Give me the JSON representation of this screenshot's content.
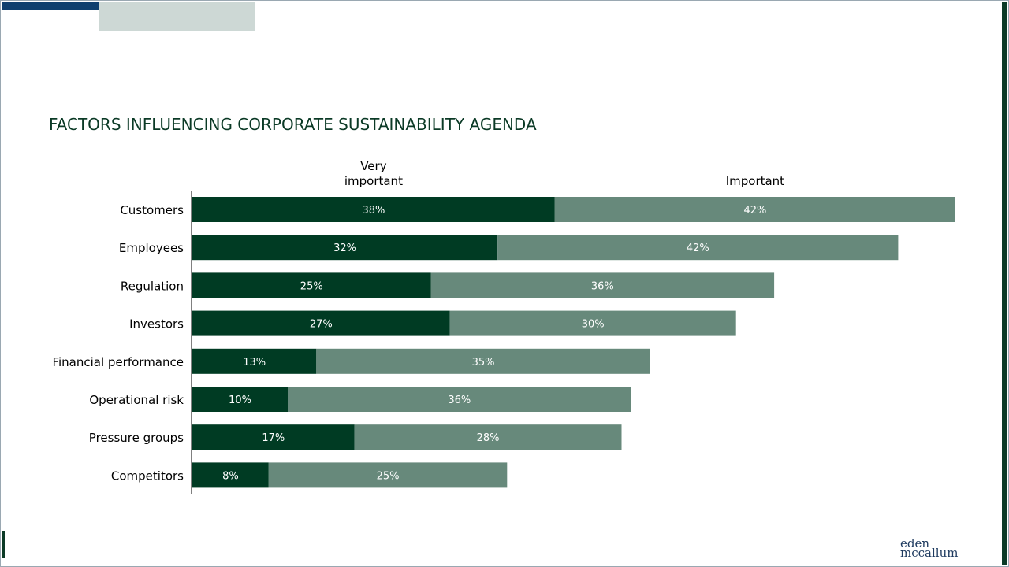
{
  "title": "FACTORS INFLUENCING CORPORATE SUSTAINABILITY AGENDA",
  "logo": {
    "line1": "eden",
    "line2": "mccallum"
  },
  "colors": {
    "very_important": "#003b23",
    "important": "#67897b",
    "title": "#0b3a26"
  },
  "chart_data": {
    "type": "bar",
    "orientation": "horizontal",
    "stacked": true,
    "categories": [
      "Customers",
      "Employees",
      "Regulation",
      "Investors",
      "Financial performance",
      "Operational risk",
      "Pressure groups",
      "Competitors"
    ],
    "series": [
      {
        "name": "Very important",
        "header": [
          "Very",
          "important"
        ],
        "values": [
          38,
          32,
          25,
          27,
          13,
          10,
          17,
          8
        ],
        "labels": [
          "38%",
          "32%",
          "25%",
          "27%",
          "13%",
          "10%",
          "17%",
          "8%"
        ]
      },
      {
        "name": "Important",
        "header": [
          "Important"
        ],
        "values": [
          42,
          42,
          36,
          30,
          35,
          36,
          28,
          25
        ],
        "labels": [
          "42%",
          "42%",
          "36%",
          "30%",
          "35%",
          "36%",
          "28%",
          "25%"
        ]
      }
    ],
    "xlim": [
      0,
      80
    ],
    "grid": false,
    "legend": "top"
  }
}
